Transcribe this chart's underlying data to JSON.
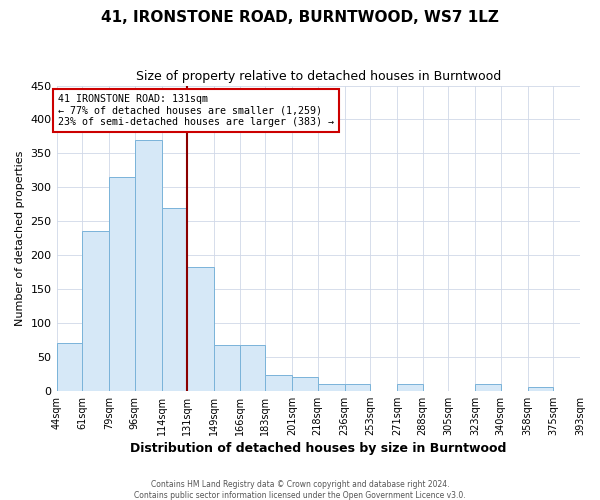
{
  "title": "41, IRONSTONE ROAD, BURNTWOOD, WS7 1LZ",
  "subtitle": "Size of property relative to detached houses in Burntwood",
  "xlabel": "Distribution of detached houses by size in Burntwood",
  "ylabel": "Number of detached properties",
  "bin_edges": [
    44,
    61,
    79,
    96,
    114,
    131,
    149,
    166,
    183,
    201,
    218,
    236,
    253,
    271,
    288,
    305,
    323,
    340,
    358,
    375,
    393
  ],
  "bin_labels": [
    "44sqm",
    "61sqm",
    "79sqm",
    "96sqm",
    "114sqm",
    "131sqm",
    "149sqm",
    "166sqm",
    "183sqm",
    "201sqm",
    "218sqm",
    "236sqm",
    "253sqm",
    "271sqm",
    "288sqm",
    "305sqm",
    "323sqm",
    "340sqm",
    "358sqm",
    "375sqm",
    "393sqm"
  ],
  "counts": [
    70,
    235,
    315,
    370,
    270,
    183,
    68,
    68,
    23,
    20,
    10,
    10,
    0,
    10,
    0,
    0,
    10,
    0,
    5,
    0
  ],
  "bar_facecolor": "#d6e8f7",
  "bar_edgecolor": "#7ab3d9",
  "marker_value": 131,
  "marker_color": "#8b0000",
  "annotation_title": "41 IRONSTONE ROAD: 131sqm",
  "annotation_line1": "← 77% of detached houses are smaller (1,259)",
  "annotation_line2": "23% of semi-detached houses are larger (383) →",
  "annotation_box_edgecolor": "#cc0000",
  "ylim": [
    0,
    450
  ],
  "yticks": [
    0,
    50,
    100,
    150,
    200,
    250,
    300,
    350,
    400,
    450
  ],
  "footer1": "Contains HM Land Registry data © Crown copyright and database right 2024.",
  "footer2": "Contains public sector information licensed under the Open Government Licence v3.0.",
  "plot_bg_color": "#ffffff",
  "fig_bg_color": "#ffffff",
  "grid_color": "#d0d8e8"
}
